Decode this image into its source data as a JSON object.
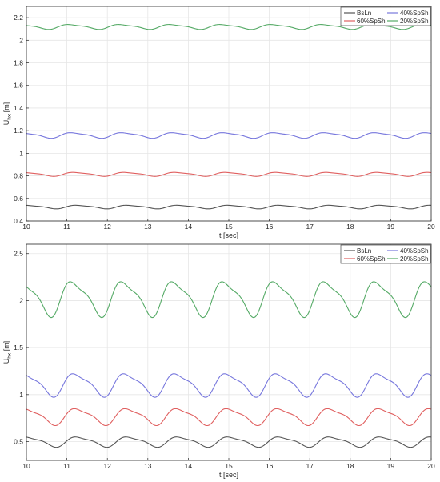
{
  "chart_data": [
    {
      "type": "line",
      "xlabel": "t [sec]",
      "ylabel_main": "U",
      "ylabel_sub": "hx",
      "ylabel_unit": "[m]",
      "xlim": [
        10,
        20
      ],
      "ylim": [
        0.4,
        2.3
      ],
      "xticks": [
        10,
        11,
        12,
        13,
        14,
        15,
        16,
        17,
        18,
        19,
        20
      ],
      "yticks": [
        0.4,
        0.6,
        0.8,
        1,
        1.2,
        1.4,
        1.6,
        1.8,
        2,
        2.2
      ],
      "grid": true,
      "legend_position": "top-right",
      "period_sec": 1.25,
      "series": [
        {
          "name": "BsLn",
          "color": "#555555",
          "mean": 0.525,
          "amplitude": 0.016,
          "phase": 0.2
        },
        {
          "name": "40%SpSh",
          "color": "#7777dd",
          "mean": 1.16,
          "amplitude": 0.025,
          "phase": 0.3
        },
        {
          "name": "60%SpSh",
          "color": "#e06060",
          "mean": 0.815,
          "amplitude": 0.018,
          "phase": 0.25
        },
        {
          "name": "20%SpSh",
          "color": "#55aa66",
          "mean": 2.12,
          "amplitude": 0.022,
          "phase": 0.35
        }
      ]
    },
    {
      "type": "line",
      "xlabel": "t [sec]",
      "ylabel_main": "U",
      "ylabel_sub": "hx",
      "ylabel_unit": "[m]",
      "xlim": [
        10,
        20
      ],
      "ylim": [
        0.3,
        2.6
      ],
      "xticks": [
        10,
        11,
        12,
        13,
        14,
        15,
        16,
        17,
        18,
        19,
        20
      ],
      "yticks": [
        0.5,
        1,
        1.5,
        2,
        2.5
      ],
      "grid": true,
      "legend_position": "top-right",
      "period_sec": 1.25,
      "series": [
        {
          "name": "BsLn",
          "color": "#555555",
          "mean": 0.5,
          "amplitude": 0.055,
          "phase": 0.2
        },
        {
          "name": "40%SpSh",
          "color": "#7777dd",
          "mean": 1.11,
          "amplitude": 0.125,
          "phase": 0.25
        },
        {
          "name": "60%SpSh",
          "color": "#e06060",
          "mean": 0.77,
          "amplitude": 0.09,
          "phase": 0.22
        },
        {
          "name": "20%SpSh",
          "color": "#55aa66",
          "mean": 2.03,
          "amplitude": 0.19,
          "phase": 0.3
        }
      ]
    }
  ]
}
